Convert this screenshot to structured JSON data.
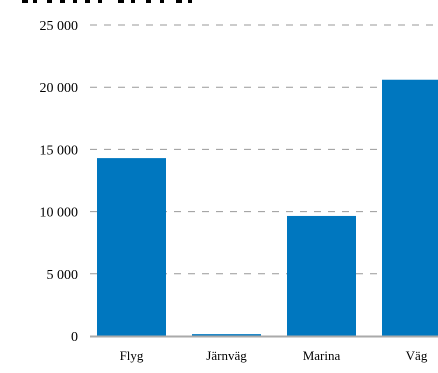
{
  "chart_data": {
    "type": "bar",
    "title": "",
    "xlabel": "",
    "ylabel": "",
    "categories": [
      "Flyg",
      "Järnväg",
      "Marina",
      "Väg"
    ],
    "values": [
      14300,
      150,
      9650,
      20600
    ],
    "ylim": [
      0,
      25000
    ],
    "yticks": [
      0,
      5000,
      10000,
      15000,
      20000,
      25000
    ],
    "ytick_labels": [
      "0",
      "5 000",
      "10 000",
      "15 000",
      "20 000",
      "25 000"
    ],
    "grid": true,
    "bar_color": "#0077bf",
    "grid_color": "#999999",
    "axis_color": "#aaaaaa"
  }
}
